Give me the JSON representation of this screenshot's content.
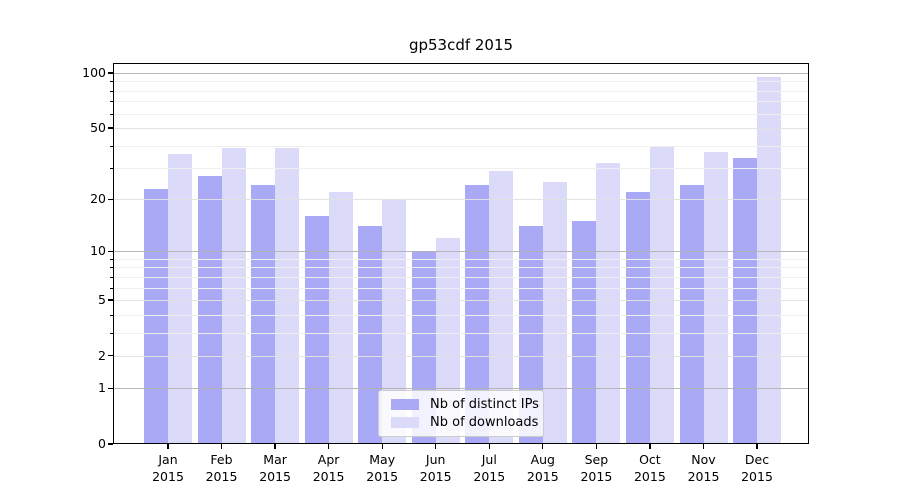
{
  "chart_data": {
    "type": "bar",
    "title": "gp53cdf 2015",
    "categories": [
      "Jan",
      "Feb",
      "Mar",
      "Apr",
      "May",
      "Jun",
      "Jul",
      "Aug",
      "Sep",
      "Oct",
      "Nov",
      "Dec"
    ],
    "category_year": "2015",
    "series": [
      {
        "name": "Nb of distinct IPs",
        "color": "#a9a9f5",
        "values": [
          23,
          27,
          24,
          16,
          14,
          10,
          24,
          14,
          15,
          22,
          24,
          34
        ]
      },
      {
        "name": "Nb of downloads",
        "color": "#dbdbf9",
        "values": [
          36,
          39,
          39,
          22,
          20,
          12,
          29,
          25,
          32,
          40,
          37,
          95
        ]
      }
    ],
    "xlabel": "",
    "ylabel": "",
    "yscale": "log10(1+x)",
    "ylim": [
      0,
      100
    ],
    "yticks": [
      0,
      1,
      2,
      5,
      10,
      20,
      50,
      100
    ],
    "minor_gridlines": [
      3,
      4,
      6,
      7,
      8,
      9,
      30,
      40,
      60,
      70,
      80,
      90
    ],
    "grid": true,
    "legend_position": "lower center"
  }
}
